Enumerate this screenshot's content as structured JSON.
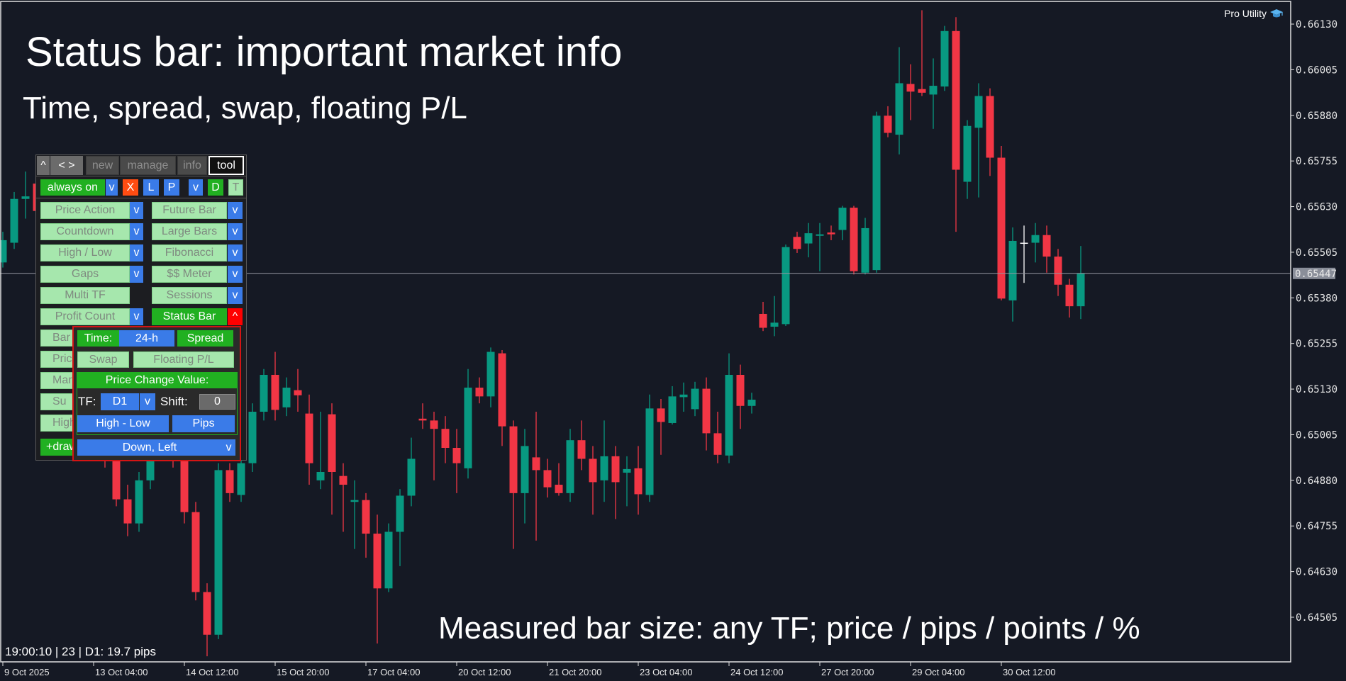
{
  "headline": {
    "title": "Status bar: important market info",
    "subtitle": "Time, spread, swap, floating P/L",
    "bottom_caption": "Measured bar size: any TF;  price / pips / points / %"
  },
  "brand": {
    "label": "Pro Utility",
    "icon": "graduation-cap-icon"
  },
  "status_line": "19:00:10 | 23 | D1: 19.7 pips",
  "panel": {
    "header": {
      "collapse": "^",
      "nav": "< >",
      "tabs": [
        "new",
        "manage",
        "info",
        "tool"
      ],
      "active_tab": "tool"
    },
    "toolbar": {
      "always_on": "always on",
      "always_on_dropdown": "v",
      "x": "X",
      "l": "L",
      "p": "P",
      "v": "v",
      "d": "D",
      "t": "T"
    },
    "left_items": [
      {
        "label": "Price Action",
        "dropdown": "v"
      },
      {
        "label": "Countdown",
        "dropdown": "v"
      },
      {
        "label": "High / Low",
        "dropdown": "v"
      },
      {
        "label": "Gaps",
        "dropdown": "v"
      },
      {
        "label": "Multi TF"
      },
      {
        "label": "Profit Count",
        "dropdown": "v"
      },
      {
        "label": "Bar"
      },
      {
        "label": "Pric"
      },
      {
        "label": "Mar"
      },
      {
        "label": "Su"
      },
      {
        "label": "High"
      }
    ],
    "draw_button": "+draw",
    "right_items": [
      {
        "label": "Future Bar",
        "dropdown": "v"
      },
      {
        "label": "Large Bars",
        "dropdown": "v"
      },
      {
        "label": "Fibonacci",
        "dropdown": "v"
      },
      {
        "label": "$$ Meter",
        "dropdown": "v"
      },
      {
        "label": "Sessions",
        "dropdown": "v"
      },
      {
        "label": "Status Bar",
        "dropdown": "^",
        "active": true
      }
    ],
    "status_bar_settings": {
      "time_label": "Time:",
      "time_format": "24-h",
      "spread": "Spread",
      "swap": "Swap",
      "floating_pl": "Floating P/L",
      "price_change_value": "Price Change Value:",
      "tf_label": "TF:",
      "tf_value": "D1",
      "tf_dropdown": "v",
      "shift_label": "Shift:",
      "shift_value": "0",
      "range_mode": "High - Low",
      "unit": "Pips",
      "position": "Down, Left",
      "position_dropdown": "v"
    }
  },
  "chart_data": {
    "type": "candlestick",
    "timeframe": "H4",
    "y_ticks": [
      "0.66130",
      "0.66005",
      "0.65880",
      "0.65755",
      "0.65630",
      "0.65505",
      "0.65380",
      "0.65255",
      "0.65130",
      "0.65005",
      "0.64880",
      "0.64755",
      "0.64630",
      "0.64505"
    ],
    "ylim": [
      0.64395,
      0.6621
    ],
    "current_price": "0.65447",
    "x_labels": [
      "9 Oct 2025",
      "13 Oct 04:00",
      "14 Oct 12:00",
      "15 Oct 20:00",
      "17 Oct 04:00",
      "20 Oct 12:00",
      "21 Oct 20:00",
      "23 Oct 04:00",
      "24 Oct 12:00",
      "27 Oct 20:00",
      "29 Oct 04:00",
      "30 Oct 12:00"
    ],
    "x_label_every_n_bars": 8,
    "colors": {
      "up": "#089981",
      "down": "#f23645",
      "doji": "#ffffff",
      "background": "#151924",
      "price_line": "#9598a1"
    },
    "ohlc": [
      [
        0.65477,
        0.65561,
        0.65463,
        0.65538
      ],
      [
        0.65531,
        0.6567,
        0.65514,
        0.65651
      ],
      [
        0.65651,
        0.65726,
        0.65597,
        0.65658
      ],
      [
        0.65693,
        0.65714,
        0.65597,
        0.65618
      ],
      [
        0.65618,
        0.65632,
        0.65467,
        0.65491
      ],
      [
        0.65491,
        0.65514,
        0.65373,
        0.65397
      ],
      [
        0.65397,
        0.65444,
        0.65256,
        0.65303
      ],
      [
        0.65303,
        0.65326,
        0.65138,
        0.65185
      ],
      [
        0.65185,
        0.65209,
        0.65021,
        0.65091
      ],
      [
        0.65091,
        0.65115,
        0.64915,
        0.64939
      ],
      [
        0.64939,
        0.64962,
        0.64809,
        0.64828
      ],
      [
        0.64828,
        0.64868,
        0.64727,
        0.64762
      ],
      [
        0.64762,
        0.64903,
        0.64739,
        0.6488
      ],
      [
        0.6488,
        0.64997,
        0.64856,
        0.64974
      ],
      [
        0.64974,
        0.65044,
        0.64939,
        0.65021
      ],
      [
        0.65021,
        0.65044,
        0.64915,
        0.64939
      ],
      [
        0.64939,
        0.64962,
        0.64762,
        0.64793
      ],
      [
        0.64793,
        0.64821,
        0.64551,
        0.64574
      ],
      [
        0.64574,
        0.64598,
        0.64398,
        0.64457
      ],
      [
        0.64457,
        0.64927,
        0.64445,
        0.64908
      ],
      [
        0.64908,
        0.64927,
        0.64821,
        0.64845
      ],
      [
        0.6484,
        0.6495,
        0.64821,
        0.64927
      ],
      [
        0.64927,
        0.65091,
        0.64903,
        0.65068
      ],
      [
        0.65068,
        0.65185,
        0.65044,
        0.65169
      ],
      [
        0.65169,
        0.65232,
        0.65044,
        0.65073
      ],
      [
        0.6508,
        0.65162,
        0.65056,
        0.65134
      ],
      [
        0.65127,
        0.65185,
        0.65068,
        0.65113
      ],
      [
        0.65063,
        0.65115,
        0.64868,
        0.64927
      ],
      [
        0.6488,
        0.65068,
        0.64856,
        0.64903
      ],
      [
        0.65061,
        0.65091,
        0.64786,
        0.64903
      ],
      [
        0.64892,
        0.64927,
        0.64739,
        0.64868
      ],
      [
        0.64821,
        0.6488,
        0.64692,
        0.64826
      ],
      [
        0.64826,
        0.64845,
        0.64668,
        0.64734
      ],
      [
        0.64734,
        0.64786,
        0.64433,
        0.64584
      ],
      [
        0.64584,
        0.64762,
        0.64574,
        0.64739
      ],
      [
        0.64739,
        0.64856,
        0.64645,
        0.64838
      ],
      [
        0.64838,
        0.64997,
        0.64809,
        0.64939
      ],
      [
        0.65049,
        0.65091,
        0.65021,
        0.65044
      ],
      [
        0.65044,
        0.65068,
        0.6488,
        0.65021
      ],
      [
        0.65021,
        0.65056,
        0.64927,
        0.64969
      ],
      [
        0.64969,
        0.65021,
        0.64845,
        0.64927
      ],
      [
        0.64913,
        0.65185,
        0.64885,
        0.65134
      ],
      [
        0.65134,
        0.65162,
        0.65091,
        0.6511
      ],
      [
        0.6511,
        0.65244,
        0.6508,
        0.65232
      ],
      [
        0.65228,
        0.65237,
        0.64974,
        0.65028
      ],
      [
        0.65028,
        0.65044,
        0.64692,
        0.64845
      ],
      [
        0.64845,
        0.65021,
        0.64762,
        0.64974
      ],
      [
        0.64943,
        0.65068,
        0.64715,
        0.64908
      ],
      [
        0.64908,
        0.64939,
        0.64833,
        0.64861
      ],
      [
        0.64868,
        0.64927,
        0.64838,
        0.64845
      ],
      [
        0.64845,
        0.65021,
        0.64821,
        0.6499
      ],
      [
        0.6499,
        0.65044,
        0.64908,
        0.64939
      ],
      [
        0.64939,
        0.64974,
        0.64786,
        0.64875
      ],
      [
        0.6488,
        0.65044,
        0.64821,
        0.64946
      ],
      [
        0.64946,
        0.64974,
        0.64774,
        0.64875
      ],
      [
        0.64901,
        0.64946,
        0.64809,
        0.64911
      ],
      [
        0.64913,
        0.64974,
        0.64786,
        0.64842
      ],
      [
        0.6484,
        0.65115,
        0.64821,
        0.65077
      ],
      [
        0.65077,
        0.65103,
        0.6495,
        0.6504
      ],
      [
        0.65037,
        0.65138,
        0.65033,
        0.6511
      ],
      [
        0.65108,
        0.65148,
        0.65068,
        0.65115
      ],
      [
        0.65075,
        0.6515,
        0.65056,
        0.65131
      ],
      [
        0.65131,
        0.65162,
        0.64962,
        0.65009
      ],
      [
        0.65009,
        0.65068,
        0.64927,
        0.6495
      ],
      [
        0.64948,
        0.65228,
        0.64927,
        0.65169
      ],
      [
        0.65169,
        0.65197,
        0.65021,
        0.65084
      ],
      [
        0.65084,
        0.6512,
        0.65063,
        0.65101
      ],
      [
        0.65336,
        0.65369,
        0.65289,
        0.65298
      ],
      [
        0.65301,
        0.65385,
        0.65275,
        0.65312
      ],
      [
        0.65308,
        0.65526,
        0.65303,
        0.65519
      ],
      [
        0.65547,
        0.65561,
        0.65503,
        0.65514
      ],
      [
        0.65529,
        0.65585,
        0.65491,
        0.65557
      ],
      [
        0.6555,
        0.65585,
        0.65453,
        0.65554
      ],
      [
        0.65559,
        0.65578,
        0.65538,
        0.65554
      ],
      [
        0.65566,
        0.65632,
        0.65538,
        0.65627
      ],
      [
        0.65627,
        0.65632,
        0.65444,
        0.65453
      ],
      [
        0.65449,
        0.65599,
        0.65444,
        0.65571
      ],
      [
        0.65456,
        0.6589,
        0.65449,
        0.65879
      ],
      [
        0.65879,
        0.65905,
        0.6582,
        0.65832
      ],
      [
        0.65827,
        0.66067,
        0.65773,
        0.65968
      ],
      [
        0.65966,
        0.6602,
        0.65867,
        0.65945
      ],
      [
        0.65952,
        0.66168,
        0.65933,
        0.65942
      ],
      [
        0.65937,
        0.66036,
        0.65843,
        0.65961
      ],
      [
        0.65959,
        0.66125,
        0.65947,
        0.66111
      ],
      [
        0.66111,
        0.66149,
        0.65561,
        0.65731
      ],
      [
        0.65698,
        0.65867,
        0.65651,
        0.65851
      ],
      [
        0.65846,
        0.65968,
        0.65655,
        0.65933
      ],
      [
        0.65933,
        0.65954,
        0.65714,
        0.65764
      ],
      [
        0.65764,
        0.65796,
        0.65373,
        0.65378
      ],
      [
        0.65373,
        0.65573,
        0.65315,
        0.65536
      ],
      [
        0.65531,
        0.65578,
        0.65421,
        0.65531
      ],
      [
        0.65531,
        0.65585,
        0.65477,
        0.65552
      ],
      [
        0.65552,
        0.65578,
        0.65449,
        0.65493
      ],
      [
        0.65493,
        0.65514,
        0.65385,
        0.65416
      ],
      [
        0.65416,
        0.65432,
        0.65326,
        0.65357
      ],
      [
        0.65357,
        0.65522,
        0.65322,
        0.65447
      ]
    ]
  }
}
